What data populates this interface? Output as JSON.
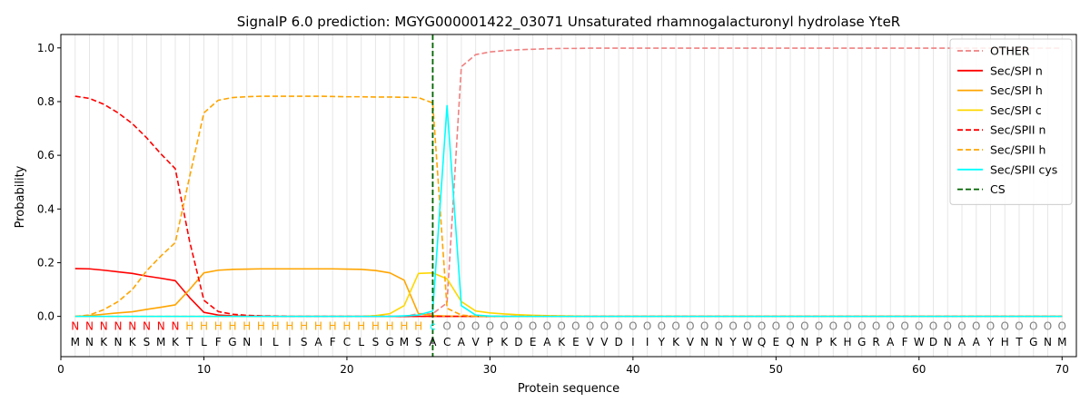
{
  "chart_data": {
    "type": "line",
    "title": "SignalP 6.0 prediction: MGYG000001422_03071 Unsaturated rhamnogalacturonyl hydrolase YteR",
    "xlabel": "Protein sequence",
    "ylabel": "Probability",
    "xlim": [
      0,
      71
    ],
    "ylim": [
      -0.15,
      1.05
    ],
    "x_ticks": [
      0,
      10,
      20,
      30,
      40,
      50,
      60,
      70
    ],
    "y_ticks": [
      0.0,
      0.2,
      0.4,
      0.6,
      0.8,
      1.0
    ],
    "x_tick_labels": [
      "0",
      "10",
      "20",
      "30",
      "40",
      "50",
      "60",
      "70"
    ],
    "y_tick_labels": [
      "0.0",
      "0.2",
      "0.4",
      "0.6",
      "0.8",
      "1.0"
    ],
    "grid": "vertical lines at each residue",
    "legend_position": "top-right",
    "sequence": "MNKNKSMKTLFGNILISAFCLSGMSACAVPKDEAKEVVDIIYKVNNYWQEQNPKHGRAFWDNAAYHTGNM",
    "labels": "NNNNNNNNHHHHHHHHHHHHHHHHHcOOOOOOOOOOOOOOOOOOOOOOOOOOOOOOOOOOOOOOOOOOOO",
    "label_colors": {
      "N": "#ff0000",
      "H": "#ffa500",
      "c": "#00ffff",
      "O": "#808080"
    },
    "cleavage_site": 26,
    "series": [
      {
        "name": "OTHER",
        "color": "#f08080",
        "dash": "dashed",
        "values": [
          0,
          0,
          0,
          0,
          0,
          0,
          0,
          0,
          0,
          0,
          0,
          0,
          0,
          0,
          0,
          0,
          0,
          0,
          0,
          0,
          0,
          0,
          0,
          0,
          0.01,
          0.01,
          0.05,
          0.93,
          0.975,
          0.985,
          0.99,
          0.993,
          0.995,
          0.997,
          0.998,
          0.998,
          0.999,
          0.999,
          0.999,
          0.999,
          0.999,
          0.999,
          0.999,
          0.999,
          0.999,
          0.999,
          0.999,
          0.999,
          0.999,
          0.999,
          0.999,
          0.999,
          0.999,
          0.999,
          0.999,
          0.999,
          0.999,
          0.999,
          0.999,
          0.999,
          0.999,
          0.999,
          0.999,
          0.999,
          0.999,
          0.999,
          0.999,
          0.999,
          0.999,
          0.999
        ]
      },
      {
        "name": "Sec/SPI n",
        "color": "#ff0000",
        "dash": "solid",
        "values": [
          0.178,
          0.177,
          0.172,
          0.166,
          0.16,
          0.15,
          0.142,
          0.133,
          0.07,
          0.015,
          0.005,
          0.002,
          0.001,
          0.001,
          0,
          0,
          0,
          0,
          0,
          0,
          0,
          0,
          0,
          0,
          0,
          0,
          0,
          0,
          0,
          0,
          0,
          0,
          0,
          0,
          0,
          0,
          0,
          0,
          0,
          0,
          0,
          0,
          0,
          0,
          0,
          0,
          0,
          0,
          0,
          0,
          0,
          0,
          0,
          0,
          0,
          0,
          0,
          0,
          0,
          0,
          0,
          0,
          0,
          0,
          0,
          0,
          0,
          0,
          0,
          0
        ]
      },
      {
        "name": "Sec/SPI h",
        "color": "#ffa500",
        "dash": "solid",
        "values": [
          0,
          0.003,
          0.008,
          0.013,
          0.017,
          0.026,
          0.034,
          0.043,
          0.1,
          0.162,
          0.172,
          0.175,
          0.176,
          0.177,
          0.177,
          0.177,
          0.177,
          0.177,
          0.177,
          0.176,
          0.175,
          0.171,
          0.162,
          0.135,
          0.01,
          0.003,
          0.001,
          0,
          0,
          0,
          0,
          0,
          0,
          0,
          0,
          0,
          0,
          0,
          0,
          0,
          0,
          0,
          0,
          0,
          0,
          0,
          0,
          0,
          0,
          0,
          0,
          0,
          0,
          0,
          0,
          0,
          0,
          0,
          0,
          0,
          0,
          0,
          0,
          0,
          0,
          0,
          0,
          0,
          0,
          0
        ]
      },
      {
        "name": "Sec/SPI c",
        "color": "#ffd700",
        "dash": "solid",
        "values": [
          0,
          0,
          0,
          0,
          0,
          0,
          0,
          0,
          0,
          0,
          0,
          0,
          0,
          0,
          0,
          0,
          0,
          0,
          0,
          0,
          0,
          0.003,
          0.01,
          0.04,
          0.16,
          0.162,
          0.14,
          0.055,
          0.02,
          0.013,
          0.009,
          0.006,
          0.004,
          0.003,
          0.002,
          0.001,
          0,
          0,
          0,
          0,
          0,
          0,
          0,
          0,
          0,
          0,
          0,
          0,
          0,
          0,
          0,
          0,
          0,
          0,
          0,
          0,
          0,
          0,
          0,
          0,
          0,
          0,
          0,
          0,
          0,
          0,
          0,
          0,
          0,
          0
        ]
      },
      {
        "name": "Sec/SPII n",
        "color": "#ff0000",
        "dash": "dashed",
        "values": [
          0.82,
          0.812,
          0.79,
          0.758,
          0.718,
          0.665,
          0.605,
          0.55,
          0.28,
          0.06,
          0.018,
          0.008,
          0.004,
          0.002,
          0.001,
          0,
          0,
          0,
          0,
          0,
          0,
          0,
          0,
          0,
          0,
          0,
          0,
          0,
          0,
          0,
          0,
          0,
          0,
          0,
          0,
          0,
          0,
          0,
          0,
          0,
          0,
          0,
          0,
          0,
          0,
          0,
          0,
          0,
          0,
          0,
          0,
          0,
          0,
          0,
          0,
          0,
          0,
          0,
          0,
          0,
          0,
          0,
          0,
          0,
          0,
          0,
          0,
          0,
          0,
          0
        ]
      },
      {
        "name": "Sec/SPII h",
        "color": "#ffa500",
        "dash": "dashed",
        "values": [
          0,
          0.005,
          0.025,
          0.055,
          0.1,
          0.17,
          0.225,
          0.275,
          0.52,
          0.758,
          0.805,
          0.815,
          0.818,
          0.82,
          0.82,
          0.82,
          0.82,
          0.82,
          0.819,
          0.818,
          0.818,
          0.817,
          0.817,
          0.816,
          0.815,
          0.795,
          0.03,
          0.005,
          0,
          0,
          0,
          0,
          0,
          0,
          0,
          0,
          0,
          0,
          0,
          0,
          0,
          0,
          0,
          0,
          0,
          0,
          0,
          0,
          0,
          0,
          0,
          0,
          0,
          0,
          0,
          0,
          0,
          0,
          0,
          0,
          0,
          0,
          0,
          0,
          0,
          0,
          0,
          0,
          0,
          0
        ]
      },
      {
        "name": "Sec/SPII cys",
        "color": "#00ffff",
        "dash": "solid",
        "values": [
          0,
          0,
          0,
          0,
          0,
          0,
          0,
          0,
          0,
          0,
          0,
          0,
          0,
          0,
          0,
          0,
          0,
          0,
          0,
          0,
          0,
          0,
          0,
          0.002,
          0.005,
          0.02,
          0.785,
          0.04,
          0.005,
          0.001,
          0,
          0,
          0,
          0,
          0,
          0,
          0,
          0,
          0,
          0,
          0,
          0,
          0,
          0,
          0,
          0,
          0,
          0,
          0,
          0,
          0,
          0,
          0,
          0,
          0,
          0,
          0,
          0,
          0,
          0,
          0,
          0,
          0,
          0,
          0,
          0,
          0,
          0,
          0,
          0
        ]
      },
      {
        "name": "CS",
        "color": "#006400",
        "dash": "dashed",
        "values": []
      }
    ]
  }
}
